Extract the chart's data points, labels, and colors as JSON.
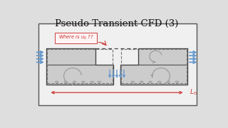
{
  "title": "Pseudo Transient CFD (3)",
  "bg_color": "#dedede",
  "panel_bg": "#f0f0f0",
  "panel_edge": "#555555",
  "fill_color": "#cccccc",
  "dashed_color": "#777777",
  "blue_color": "#6699cc",
  "red_color": "#cc3333",
  "gray_arrow": "#999999",
  "annotation_text": "Where is $u_0$ ??",
  "label_L0": "$L_0$",
  "xlim": [
    0,
    10
  ],
  "ylim": [
    0,
    6
  ]
}
